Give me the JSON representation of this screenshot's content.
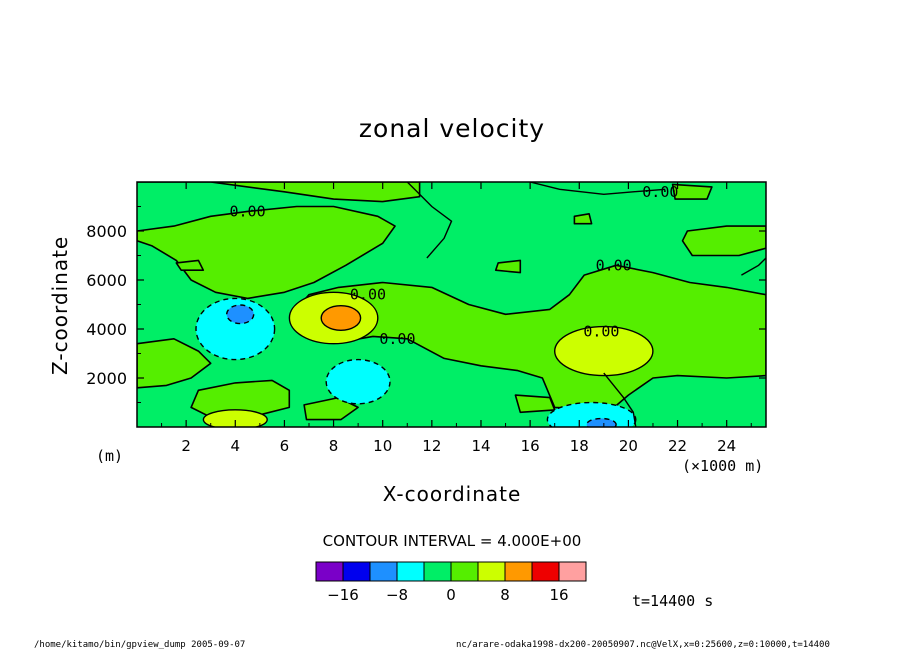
{
  "chart_data": {
    "type": "heatmap",
    "title": "zonal velocity",
    "xlabel": "X-coordinate",
    "ylabel": "Z-coordinate",
    "x_unit": "(×1000 m)",
    "y_unit": "(m)",
    "xlim": [
      0,
      25.6
    ],
    "ylim": [
      0,
      10000
    ],
    "x_ticks": [
      2,
      4,
      6,
      8,
      10,
      12,
      14,
      16,
      18,
      20,
      22,
      24
    ],
    "y_ticks": [
      2000,
      4000,
      6000,
      8000
    ],
    "contour_labels": [
      {
        "text": "0.00",
        "x": 4.5,
        "y": 8800
      },
      {
        "text": "0.00",
        "x": 21.3,
        "y": 9600
      },
      {
        "text": "0.00",
        "x": 19.4,
        "y": 6600
      },
      {
        "text": "0.00",
        "x": 9.4,
        "y": 5400
      },
      {
        "text": "0.00",
        "x": 10.6,
        "y": 3600
      },
      {
        "text": "0.00",
        "x": 18.9,
        "y": 3900
      }
    ],
    "value_regions": [
      {
        "x": 12.8,
        "y": 5000,
        "value": 2,
        "color": "#00ee66",
        "extent": "background"
      },
      {
        "x": 4.0,
        "y": 4000,
        "value": -6,
        "color": "#00ffff"
      },
      {
        "x": 4.2,
        "y": 4600,
        "value": -10,
        "color": "#1e90ff"
      },
      {
        "x": 8.0,
        "y": 4450,
        "value": 10,
        "color": "#ccff00"
      },
      {
        "x": 8.3,
        "y": 4450,
        "value": 14,
        "color": "#ff9900"
      },
      {
        "x": 9.0,
        "y": 1850,
        "value": -6,
        "color": "#00ffff"
      },
      {
        "x": 19.0,
        "y": 3100,
        "value": 10,
        "color": "#ccff00"
      },
      {
        "x": 4.0,
        "y": 300,
        "value": 10,
        "color": "#ccff00"
      },
      {
        "x": 18.5,
        "y": 300,
        "value": -6,
        "color": "#00ffff"
      },
      {
        "x": 18.9,
        "y": 100,
        "value": -10,
        "color": "#1e90ff"
      }
    ],
    "contour_interval_text": "CONTOUR INTERVAL = 4.000E+00",
    "colorbar": {
      "colors": [
        "#7a00c8",
        "#0000ee",
        "#1e90ff",
        "#00ffff",
        "#00ee66",
        "#55ee00",
        "#ccff00",
        "#ff9900",
        "#ee0000",
        "#ffa0a0"
      ],
      "tick_values": [
        -16,
        -8,
        0,
        8,
        16
      ],
      "tick_labels": [
        "−16",
        "−8",
        "0",
        "8",
        "16"
      ]
    },
    "time_label": "t=14400 s"
  },
  "footer": {
    "left": "/home/kitamo/bin/gpview_dump  2005-09-07",
    "right": "nc/arare-odaka1998-dx200-20050907.nc@VelX,x=0:25600,z=0:10000,t=14400"
  }
}
